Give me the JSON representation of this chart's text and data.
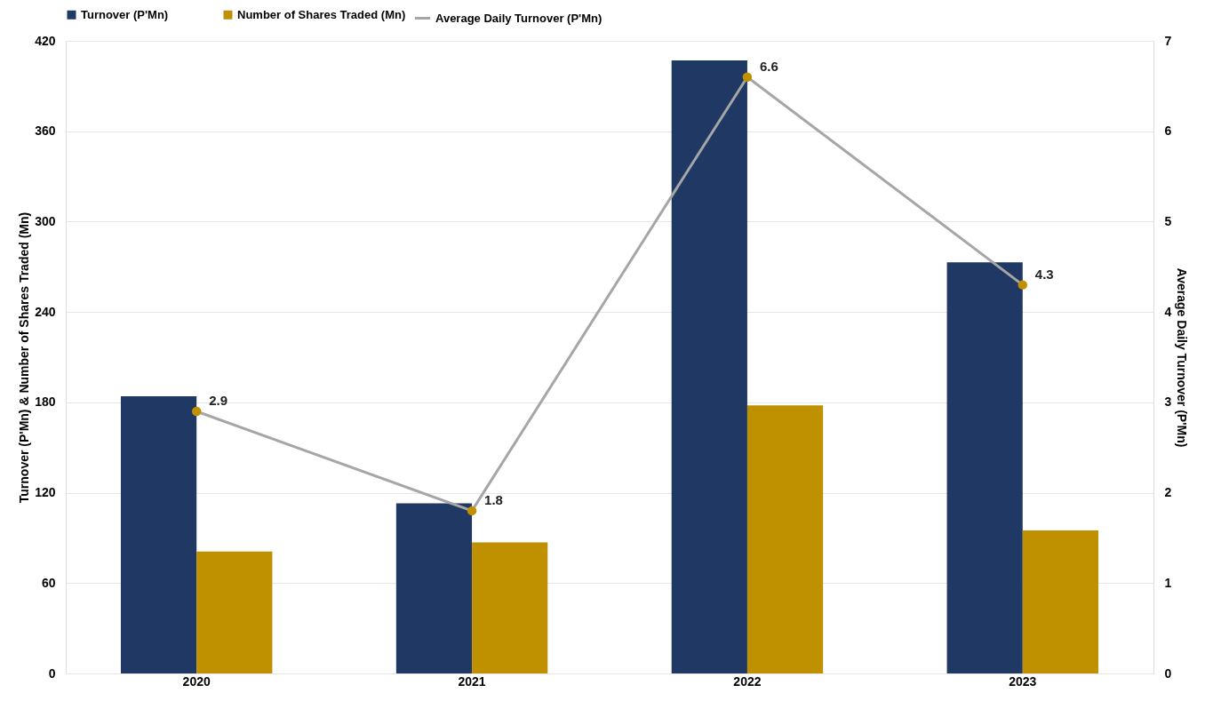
{
  "chart_data": {
    "type": "bar",
    "categories": [
      "2020",
      "2021",
      "2022",
      "2023"
    ],
    "series": [
      {
        "name": "Turnover (P'Mn)",
        "color": "#203864",
        "values": [
          184,
          113,
          407,
          273
        ]
      },
      {
        "name": "Number of Shares Traded (Mn)",
        "color": "#bf9000",
        "values": [
          81,
          87,
          178,
          95
        ]
      },
      {
        "name": "Average Daily Turnover (P'Mn)",
        "type": "line",
        "axis": "y2",
        "color": "#a6a6a6",
        "values": [
          2.9,
          1.8,
          6.6,
          4.3
        ],
        "data_labels": true
      }
    ],
    "ylabel": "Turnover (P'Mn) & Number of Shares Traded (Mn)",
    "y2label": "Average Daily Turnover (P'Mn)",
    "ylim": [
      0,
      420
    ],
    "yticks": [
      0,
      60,
      120,
      180,
      240,
      300,
      360,
      420
    ],
    "y2lim": [
      0,
      7
    ],
    "y2ticks": [
      0,
      1,
      2,
      3,
      4,
      5,
      6,
      7
    ],
    "grid": "y",
    "legend": "top",
    "marker": "circle",
    "line_style": "solid"
  }
}
